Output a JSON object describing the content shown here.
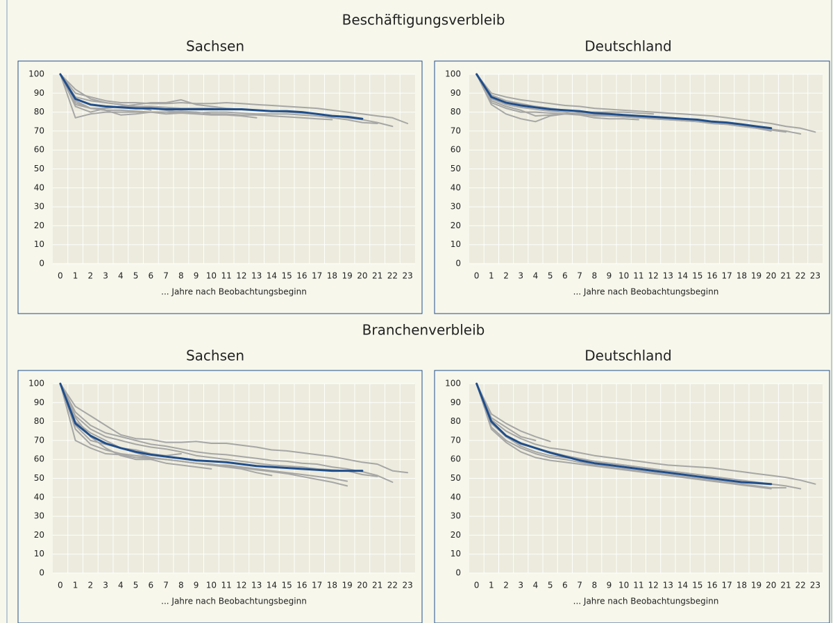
{
  "section_titles": [
    "Beschäftigungsverbleib",
    "Branchenverbleib"
  ],
  "chart_data": [
    {
      "type": "line",
      "title": "Sachsen",
      "x_label": "... Jahre nach Beobachtungsbeginn",
      "categories": [
        0,
        1,
        2,
        3,
        4,
        5,
        6,
        7,
        8,
        9,
        10,
        11,
        12,
        13,
        14,
        15,
        16,
        17,
        18,
        19,
        20,
        21,
        22,
        23
      ],
      "ylim": [
        0,
        100
      ],
      "yticks": [
        0,
        10,
        20,
        30,
        40,
        50,
        60,
        70,
        80,
        90,
        100
      ],
      "grid": true,
      "series": [
        {
          "color": "#a6a6a6",
          "values": [
            100,
            90,
            88,
            86,
            85,
            85,
            84.5,
            84.5,
            85,
            84.5,
            84.5,
            85,
            84.5,
            84,
            83.5,
            83,
            82.5,
            82,
            81,
            80,
            79,
            78,
            77,
            74
          ]
        },
        {
          "color": "#a6a6a6",
          "values": [
            100,
            92,
            87,
            85,
            84,
            83,
            83,
            82.5,
            82,
            82,
            82,
            81.5,
            81.5,
            81,
            80.5,
            80,
            79.5,
            79,
            78,
            77,
            76,
            74.5,
            72.5,
            null
          ]
        },
        {
          "color": "#a6a6a6",
          "values": [
            100,
            85,
            82,
            81,
            81,
            80.5,
            80,
            80,
            79.5,
            79.5,
            80,
            80,
            79.5,
            79,
            79,
            79,
            78.5,
            78,
            77,
            76,
            74.5,
            74,
            null,
            null
          ]
        },
        {
          "color": "#a6a6a6",
          "values": [
            100,
            77,
            79,
            80,
            80,
            80,
            80,
            80,
            80.5,
            80,
            79,
            79,
            78.5,
            78.5,
            78,
            77.5,
            77,
            76.5,
            76,
            null,
            null,
            null,
            null,
            null
          ]
        },
        {
          "color": "#a6a6a6",
          "values": [
            100,
            83,
            80,
            82,
            83,
            84,
            85,
            85,
            86.5,
            84,
            83,
            82,
            81.5,
            81,
            80.5,
            null,
            null,
            null,
            null,
            null,
            null,
            null,
            null,
            null
          ]
        },
        {
          "color": "#a6a6a6",
          "values": [
            100,
            86,
            82,
            81,
            78.5,
            79,
            80,
            79,
            79.5,
            79,
            78.5,
            78.5,
            78,
            77,
            null,
            null,
            null,
            null,
            null,
            null,
            null,
            null,
            null,
            null
          ]
        },
        {
          "color": "#a6a6a6",
          "values": [
            100,
            88,
            86,
            85,
            84,
            82,
            82,
            81,
            80,
            80,
            null,
            null,
            null,
            null,
            null,
            null,
            null,
            null,
            null,
            null,
            null,
            null,
            null,
            null
          ]
        },
        {
          "color": "#a6a6a6",
          "values": [
            100,
            84,
            82,
            82,
            83,
            82.5,
            81,
            null,
            null,
            null,
            null,
            null,
            null,
            null,
            null,
            null,
            null,
            null,
            null,
            null,
            null,
            null,
            null,
            null
          ]
        },
        {
          "color": "#1f4e8c",
          "values": [
            100,
            87,
            84,
            83,
            82.5,
            82,
            82,
            81.5,
            81.5,
            81.5,
            81.5,
            81.5,
            81.5,
            81,
            80.5,
            80.5,
            80,
            79,
            78,
            77.5,
            76.5,
            null,
            null,
            null
          ]
        }
      ]
    },
    {
      "type": "line",
      "title": "Deutschland",
      "x_label": "... Jahre nach Beobachtungsbeginn",
      "categories": [
        0,
        1,
        2,
        3,
        4,
        5,
        6,
        7,
        8,
        9,
        10,
        11,
        12,
        13,
        14,
        15,
        16,
        17,
        18,
        19,
        20,
        21,
        22,
        23
      ],
      "ylim": [
        0,
        100
      ],
      "yticks": [
        0,
        10,
        20,
        30,
        40,
        50,
        60,
        70,
        80,
        90,
        100
      ],
      "grid": true,
      "series": [
        {
          "color": "#a6a6a6",
          "values": [
            100,
            90,
            88,
            86.5,
            85.5,
            84.5,
            83.5,
            83,
            82,
            81.5,
            81,
            80.5,
            80,
            79.5,
            79,
            78.5,
            78,
            77,
            76,
            75,
            74,
            72.5,
            71.5,
            69.5
          ]
        },
        {
          "color": "#a6a6a6",
          "values": [
            100,
            89,
            86,
            84.5,
            83,
            82,
            81,
            80,
            79,
            78.5,
            78,
            77.5,
            77,
            76.5,
            76,
            75.5,
            74.5,
            74,
            73,
            72,
            71,
            70,
            68.5,
            null
          ]
        },
        {
          "color": "#a6a6a6",
          "values": [
            100,
            87,
            84,
            82.5,
            81.5,
            80.5,
            80,
            79,
            78.5,
            78,
            77.5,
            77,
            76.5,
            76,
            75.5,
            75,
            74,
            73.5,
            72.5,
            71.5,
            70.5,
            69.5,
            null,
            null
          ]
        },
        {
          "color": "#a6a6a6",
          "values": [
            100,
            84,
            79,
            76.5,
            75,
            78,
            79,
            79,
            78,
            78,
            77.5,
            77,
            76.5,
            76,
            75.5,
            75,
            74,
            73.5,
            72.5,
            71.5,
            70,
            null,
            null,
            null
          ]
        },
        {
          "color": "#a6a6a6",
          "values": [
            100,
            86,
            83,
            81,
            78,
            78.5,
            79,
            79.5,
            80,
            80,
            80,
            79.5,
            79,
            null,
            null,
            null,
            null,
            null,
            null,
            null,
            null,
            null,
            null,
            null
          ]
        },
        {
          "color": "#a6a6a6",
          "values": [
            100,
            85,
            82,
            80,
            80,
            79.5,
            79,
            78.5,
            77,
            76.5,
            76.5,
            76,
            null,
            null,
            null,
            null,
            null,
            null,
            null,
            null,
            null,
            null,
            null,
            null
          ]
        },
        {
          "color": "#a6a6a6",
          "values": [
            100,
            88,
            85,
            84,
            83,
            82,
            null,
            null,
            null,
            null,
            null,
            null,
            null,
            null,
            null,
            null,
            null,
            null,
            null,
            null,
            null,
            null,
            null,
            null
          ]
        },
        {
          "color": "#1f4e8c",
          "values": [
            100,
            88,
            85,
            83.5,
            82.5,
            81.5,
            81,
            80.5,
            79.5,
            79,
            78.5,
            78,
            77.5,
            77,
            76.5,
            76,
            75,
            74.5,
            73.5,
            72.5,
            71.5,
            null,
            null,
            null
          ]
        }
      ]
    },
    {
      "type": "line",
      "title": "Sachsen",
      "x_label": "... Jahre nach Beobachtungsbeginn",
      "categories": [
        0,
        1,
        2,
        3,
        4,
        5,
        6,
        7,
        8,
        9,
        10,
        11,
        12,
        13,
        14,
        15,
        16,
        17,
        18,
        19,
        20,
        21,
        22,
        23
      ],
      "ylim": [
        0,
        100
      ],
      "yticks": [
        0,
        10,
        20,
        30,
        40,
        50,
        60,
        70,
        80,
        90,
        100
      ],
      "grid": true,
      "series": [
        {
          "color": "#a6a6a6",
          "values": [
            100,
            88,
            83,
            78,
            73,
            71,
            70.5,
            69,
            69,
            69.5,
            68.5,
            68.5,
            67.5,
            66.5,
            65,
            64.5,
            63.5,
            62.5,
            61.5,
            60,
            58.5,
            57.5,
            54,
            53
          ]
        },
        {
          "color": "#a6a6a6",
          "values": [
            100,
            85,
            78,
            74,
            72,
            70,
            68,
            67,
            65.5,
            64,
            63,
            62.5,
            61.5,
            60.5,
            59.5,
            59,
            58,
            57.5,
            56,
            55,
            53.5,
            51.5,
            48,
            null
          ]
        },
        {
          "color": "#a6a6a6",
          "values": [
            100,
            83,
            76,
            72,
            70,
            68,
            66.5,
            65.5,
            64,
            62,
            61,
            60,
            59,
            58,
            57,
            56.5,
            56,
            55,
            54.5,
            54,
            52,
            51,
            null,
            null
          ]
        },
        {
          "color": "#a6a6a6",
          "values": [
            100,
            70,
            66,
            63,
            62.5,
            61,
            60.5,
            60,
            59,
            58,
            57,
            57,
            56,
            55,
            54,
            53,
            52,
            51,
            50,
            48.5,
            null,
            null,
            null,
            null
          ]
        },
        {
          "color": "#a6a6a6",
          "values": [
            100,
            80,
            74,
            70,
            66,
            63.5,
            61,
            60,
            59,
            58,
            57.5,
            56.5,
            55.5,
            54.5,
            53.5,
            52.5,
            51,
            49.5,
            48,
            46,
            null,
            null,
            null,
            null
          ]
        },
        {
          "color": "#a6a6a6",
          "values": [
            100,
            76,
            68,
            65,
            63,
            62,
            61,
            60,
            59,
            58,
            57,
            56,
            55,
            53,
            51.5,
            null,
            null,
            null,
            null,
            null,
            null,
            null,
            null,
            null
          ]
        },
        {
          "color": "#a6a6a6",
          "values": [
            100,
            82,
            72,
            66,
            62,
            60,
            60,
            58,
            57,
            56,
            55,
            null,
            null,
            null,
            null,
            null,
            null,
            null,
            null,
            null,
            null,
            null,
            null,
            null
          ]
        },
        {
          "color": "#a6a6a6",
          "values": [
            100,
            78,
            70,
            68,
            66,
            65,
            63,
            62,
            63,
            null,
            null,
            null,
            null,
            null,
            null,
            null,
            null,
            null,
            null,
            null,
            null,
            null,
            null,
            null
          ]
        },
        {
          "color": "#1f4e8c",
          "values": [
            100,
            79,
            72.5,
            68.5,
            66,
            64,
            62.5,
            61.5,
            60.5,
            59.5,
            59,
            58.5,
            57.5,
            56.5,
            56,
            55.5,
            55,
            54.5,
            54,
            54,
            54,
            null,
            null,
            null
          ]
        }
      ]
    },
    {
      "type": "line",
      "title": "Deutschland",
      "x_label": "... Jahre nach Beobachtungsbeginn",
      "categories": [
        0,
        1,
        2,
        3,
        4,
        5,
        6,
        7,
        8,
        9,
        10,
        11,
        12,
        13,
        14,
        15,
        16,
        17,
        18,
        19,
        20,
        21,
        22,
        23
      ],
      "ylim": [
        0,
        100
      ],
      "yticks": [
        0,
        10,
        20,
        30,
        40,
        50,
        60,
        70,
        80,
        90,
        100
      ],
      "grid": true,
      "series": [
        {
          "color": "#a6a6a6",
          "values": [
            100,
            84,
            79,
            75,
            72,
            69.5,
            null,
            null,
            null,
            null,
            null,
            null,
            null,
            null,
            null,
            null,
            null,
            null,
            null,
            null,
            null,
            null,
            null,
            null
          ]
        },
        {
          "color": "#a6a6a6",
          "values": [
            100,
            82,
            77,
            72,
            70,
            null,
            null,
            null,
            null,
            null,
            null,
            null,
            null,
            null,
            null,
            null,
            null,
            null,
            null,
            null,
            null,
            null,
            null,
            null
          ]
        },
        {
          "color": "#a6a6a6",
          "values": [
            100,
            81,
            75,
            71,
            68,
            66,
            65,
            63.5,
            62,
            61,
            60,
            59,
            58,
            57,
            56.5,
            56,
            55.5,
            54.5,
            53.5,
            52.5,
            51.5,
            50.5,
            49,
            47
          ]
        },
        {
          "color": "#a6a6a6",
          "values": [
            100,
            79,
            72,
            68,
            66,
            64,
            62,
            60.5,
            59,
            58,
            57,
            56,
            55,
            54,
            53,
            52,
            51,
            50,
            49,
            48,
            47,
            46,
            44.5,
            null
          ]
        },
        {
          "color": "#a6a6a6",
          "values": [
            100,
            77,
            70,
            66,
            63,
            61,
            60,
            58.5,
            57,
            56,
            55,
            54,
            53,
            52,
            51,
            50,
            49,
            48,
            47,
            46,
            45,
            45,
            null,
            null
          ]
        },
        {
          "color": "#a6a6a6",
          "values": [
            100,
            76,
            69,
            64,
            61,
            59.5,
            58.5,
            57.5,
            56.5,
            55.5,
            54.5,
            53.5,
            52.5,
            51.5,
            50.5,
            49.5,
            48.5,
            47.5,
            46.5,
            45.5,
            44.5,
            null,
            null,
            null
          ]
        },
        {
          "color": "#a6a6a6",
          "values": [
            100,
            80,
            72,
            67,
            64,
            62,
            61,
            60,
            59,
            58,
            57,
            56,
            55,
            null,
            null,
            null,
            null,
            null,
            null,
            null,
            null,
            null,
            null,
            null
          ]
        },
        {
          "color": "#1f4e8c",
          "values": [
            100,
            80,
            72.5,
            68.5,
            66,
            63.5,
            61.5,
            59.5,
            58,
            57,
            56,
            55,
            54,
            53,
            52,
            51,
            50,
            49,
            48,
            47.5,
            47,
            null,
            null,
            null
          ]
        }
      ]
    }
  ]
}
